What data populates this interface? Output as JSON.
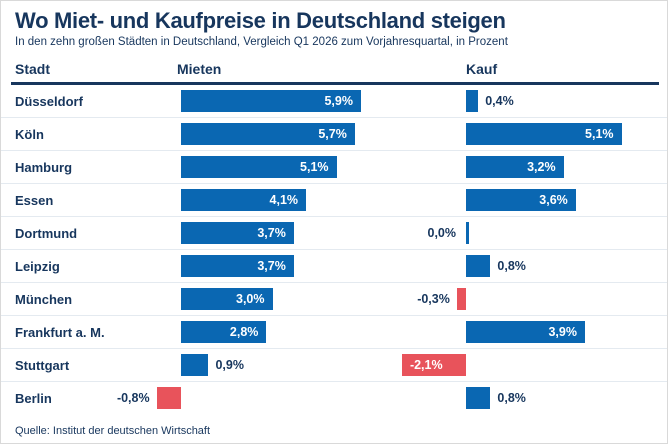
{
  "title": "Wo Miet- und Kaufpreise in Deutschland steigen",
  "subtitle": "In den zehn großen Städten in Deutschland, Vergleich Q1 2026 zum Vorjahresquartal, in Prozent",
  "source": "Quelle: Institut der deutschen Wirtschaft",
  "colors": {
    "positive_bar": "#0a67b2",
    "negative_bar": "#e8535b",
    "text": "#17365d",
    "row_separator": "#e4eaf0"
  },
  "chart_data": {
    "type": "bar",
    "orientation": "horizontal",
    "unit": "percent",
    "columns": [
      "Stadt",
      "Mieten",
      "Kauf"
    ],
    "categories": [
      "Düsseldorf",
      "Köln",
      "Hamburg",
      "Essen",
      "Dortmund",
      "Leipzig",
      "München",
      "Frankfurt a. M.",
      "Stuttgart",
      "Berlin"
    ],
    "series": [
      {
        "name": "Mieten",
        "values": [
          5.9,
          5.7,
          5.1,
          4.1,
          3.7,
          3.7,
          3.0,
          2.8,
          0.9,
          -0.8
        ],
        "labels": [
          "5,9%",
          "5,7%",
          "5,1%",
          "4,1%",
          "3,7%",
          "3,7%",
          "3,0%",
          "2,8%",
          "0,9%",
          "-0,8%"
        ],
        "label_positions": [
          "inside",
          "inside",
          "inside",
          "inside",
          "inside",
          "inside",
          "inside",
          "inside",
          "outside-right",
          "outside-left"
        ]
      },
      {
        "name": "Kauf",
        "values": [
          0.4,
          5.1,
          3.2,
          3.6,
          0.0,
          0.8,
          -0.3,
          3.9,
          -2.1,
          0.8
        ],
        "labels": [
          "0,4%",
          "5,1%",
          "3,2%",
          "3,6%",
          "0,0%",
          "0,8%",
          "-0,3%",
          "3,9%",
          "-2,1%",
          "0,8%"
        ],
        "label_positions": [
          "outside-right",
          "inside",
          "inside",
          "inside",
          "outside-left",
          "outside-right",
          "outside-left",
          "inside",
          "inside",
          "outside-right"
        ]
      }
    ],
    "xlim": [
      -2.5,
      6.2
    ],
    "grid": false,
    "legend": "column-headers"
  }
}
